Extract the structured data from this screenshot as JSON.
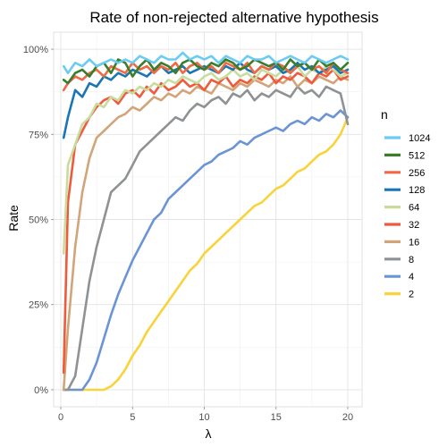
{
  "chart_data": {
    "type": "line",
    "title": "Rate of non-rejected alternative hypothesis",
    "xlabel": "λ",
    "ylabel": "Rate",
    "xlim": [
      -0.5,
      21
    ],
    "ylim": [
      -0.05,
      1.05
    ],
    "x_ticks": [
      0,
      5,
      10,
      15,
      20
    ],
    "x_tick_labels": [
      "0",
      "5",
      "10",
      "15",
      "20"
    ],
    "y_ticks": [
      0,
      0.25,
      0.5,
      0.75,
      1.0
    ],
    "y_tick_labels": [
      "0%",
      "25%",
      "50%",
      "75%",
      "100%"
    ],
    "grid": true,
    "legend": {
      "title": "n",
      "position": "right"
    },
    "x": [
      0.2,
      0.5,
      1,
      1.5,
      2,
      2.5,
      3,
      3.5,
      4,
      4.5,
      5,
      5.5,
      6,
      6.5,
      7,
      7.5,
      8,
      8.5,
      9,
      9.5,
      10,
      10.5,
      11,
      11.5,
      12,
      12.5,
      13,
      13.5,
      14,
      14.5,
      15,
      15.5,
      16,
      16.5,
      17,
      17.5,
      18,
      18.5,
      19,
      19.5,
      20
    ],
    "series": [
      {
        "name": "1024",
        "color": "#6ccbf2",
        "values": [
          0.95,
          0.93,
          0.96,
          0.95,
          0.97,
          0.95,
          0.96,
          0.97,
          0.96,
          0.97,
          0.96,
          0.98,
          0.97,
          0.96,
          0.98,
          0.97,
          0.97,
          0.99,
          0.97,
          0.98,
          0.97,
          0.98,
          0.96,
          0.98,
          0.97,
          0.96,
          0.98,
          0.97,
          0.97,
          0.98,
          0.96,
          0.97,
          0.98,
          0.97,
          0.96,
          0.98,
          0.97,
          0.96,
          0.97,
          0.98,
          0.97
        ]
      },
      {
        "name": "512",
        "color": "#3a7d2c",
        "values": [
          0.91,
          0.9,
          0.93,
          0.94,
          0.92,
          0.95,
          0.96,
          0.93,
          0.97,
          0.96,
          0.92,
          0.95,
          0.97,
          0.94,
          0.96,
          0.95,
          0.93,
          0.96,
          0.97,
          0.95,
          0.94,
          0.96,
          0.95,
          0.97,
          0.96,
          0.94,
          0.95,
          0.97,
          0.96,
          0.95,
          0.96,
          0.94,
          0.97,
          0.95,
          0.96,
          0.94,
          0.97,
          0.95,
          0.96,
          0.94,
          0.96
        ]
      },
      {
        "name": "256",
        "color": "#ef6a44",
        "values": [
          0.88,
          0.9,
          0.92,
          0.91,
          0.93,
          0.94,
          0.92,
          0.95,
          0.94,
          0.93,
          0.96,
          0.94,
          0.95,
          0.93,
          0.95,
          0.94,
          0.96,
          0.93,
          0.95,
          0.96,
          0.94,
          0.95,
          0.93,
          0.96,
          0.95,
          0.94,
          0.96,
          0.93,
          0.95,
          0.94,
          0.96,
          0.95,
          0.93,
          0.95,
          0.96,
          0.94,
          0.95,
          0.93,
          0.96,
          0.94,
          0.93
        ]
      },
      {
        "name": "128",
        "color": "#1a75b4",
        "values": [
          0.74,
          0.8,
          0.88,
          0.86,
          0.9,
          0.89,
          0.92,
          0.91,
          0.93,
          0.92,
          0.94,
          0.93,
          0.92,
          0.94,
          0.95,
          0.93,
          0.94,
          0.95,
          0.93,
          0.94,
          0.95,
          0.94,
          0.93,
          0.95,
          0.94,
          0.96,
          0.94,
          0.93,
          0.95,
          0.94,
          0.95,
          0.93,
          0.94,
          0.96,
          0.94,
          0.95,
          0.93,
          0.94,
          0.95,
          0.93,
          0.94
        ]
      },
      {
        "name": "64",
        "color": "#c8dc9e",
        "values": [
          0.4,
          0.66,
          0.72,
          0.78,
          0.8,
          0.84,
          0.83,
          0.86,
          0.85,
          0.88,
          0.87,
          0.89,
          0.88,
          0.9,
          0.89,
          0.91,
          0.9,
          0.92,
          0.91,
          0.9,
          0.92,
          0.93,
          0.91,
          0.92,
          0.94,
          0.92,
          0.93,
          0.91,
          0.94,
          0.93,
          0.92,
          0.94,
          0.93,
          0.95,
          0.92,
          0.94,
          0.93,
          0.95,
          0.94,
          0.92,
          0.93
        ]
      },
      {
        "name": "32",
        "color": "#f05a3c",
        "values": [
          0.05,
          0.55,
          0.72,
          0.76,
          0.8,
          0.83,
          0.85,
          0.86,
          0.84,
          0.87,
          0.88,
          0.86,
          0.89,
          0.87,
          0.9,
          0.88,
          0.89,
          0.91,
          0.89,
          0.9,
          0.88,
          0.91,
          0.9,
          0.92,
          0.89,
          0.91,
          0.9,
          0.92,
          0.91,
          0.93,
          0.9,
          0.92,
          0.91,
          0.93,
          0.92,
          0.9,
          0.93,
          0.92,
          0.94,
          0.91,
          0.92
        ]
      },
      {
        "name": "16",
        "color": "#d1a579",
        "values": [
          0.0,
          0.18,
          0.42,
          0.58,
          0.68,
          0.74,
          0.76,
          0.78,
          0.8,
          0.81,
          0.83,
          0.82,
          0.84,
          0.86,
          0.85,
          0.87,
          0.86,
          0.88,
          0.87,
          0.89,
          0.88,
          0.87,
          0.9,
          0.89,
          0.88,
          0.9,
          0.89,
          0.91,
          0.9,
          0.89,
          0.91,
          0.9,
          0.92,
          0.89,
          0.91,
          0.9,
          0.92,
          0.91,
          0.9,
          0.92,
          0.91
        ]
      },
      {
        "name": "8",
        "color": "#8f9294",
        "values": [
          0.0,
          0.0,
          0.04,
          0.18,
          0.32,
          0.42,
          0.5,
          0.58,
          0.6,
          0.62,
          0.66,
          0.7,
          0.72,
          0.74,
          0.76,
          0.78,
          0.8,
          0.79,
          0.82,
          0.84,
          0.83,
          0.85,
          0.86,
          0.84,
          0.87,
          0.86,
          0.88,
          0.85,
          0.87,
          0.86,
          0.88,
          0.87,
          0.86,
          0.89,
          0.87,
          0.88,
          0.86,
          0.89,
          0.88,
          0.87,
          0.78
        ]
      },
      {
        "name": "4",
        "color": "#6b94d6",
        "values": [
          0.0,
          0.0,
          0.0,
          0.0,
          0.03,
          0.08,
          0.15,
          0.22,
          0.28,
          0.33,
          0.38,
          0.42,
          0.46,
          0.5,
          0.52,
          0.56,
          0.58,
          0.6,
          0.62,
          0.64,
          0.66,
          0.67,
          0.69,
          0.7,
          0.71,
          0.73,
          0.72,
          0.74,
          0.75,
          0.76,
          0.77,
          0.76,
          0.78,
          0.79,
          0.78,
          0.8,
          0.79,
          0.81,
          0.8,
          0.82,
          0.8
        ]
      },
      {
        "name": "2",
        "color": "#f8d33a",
        "values": [
          0.0,
          0.0,
          0.0,
          0.0,
          0.0,
          0.0,
          0.0,
          0.01,
          0.03,
          0.06,
          0.1,
          0.13,
          0.17,
          0.2,
          0.23,
          0.26,
          0.29,
          0.32,
          0.35,
          0.37,
          0.4,
          0.42,
          0.44,
          0.46,
          0.48,
          0.5,
          0.52,
          0.54,
          0.55,
          0.57,
          0.59,
          0.6,
          0.62,
          0.64,
          0.65,
          0.67,
          0.69,
          0.7,
          0.72,
          0.75,
          0.8
        ]
      }
    ]
  }
}
